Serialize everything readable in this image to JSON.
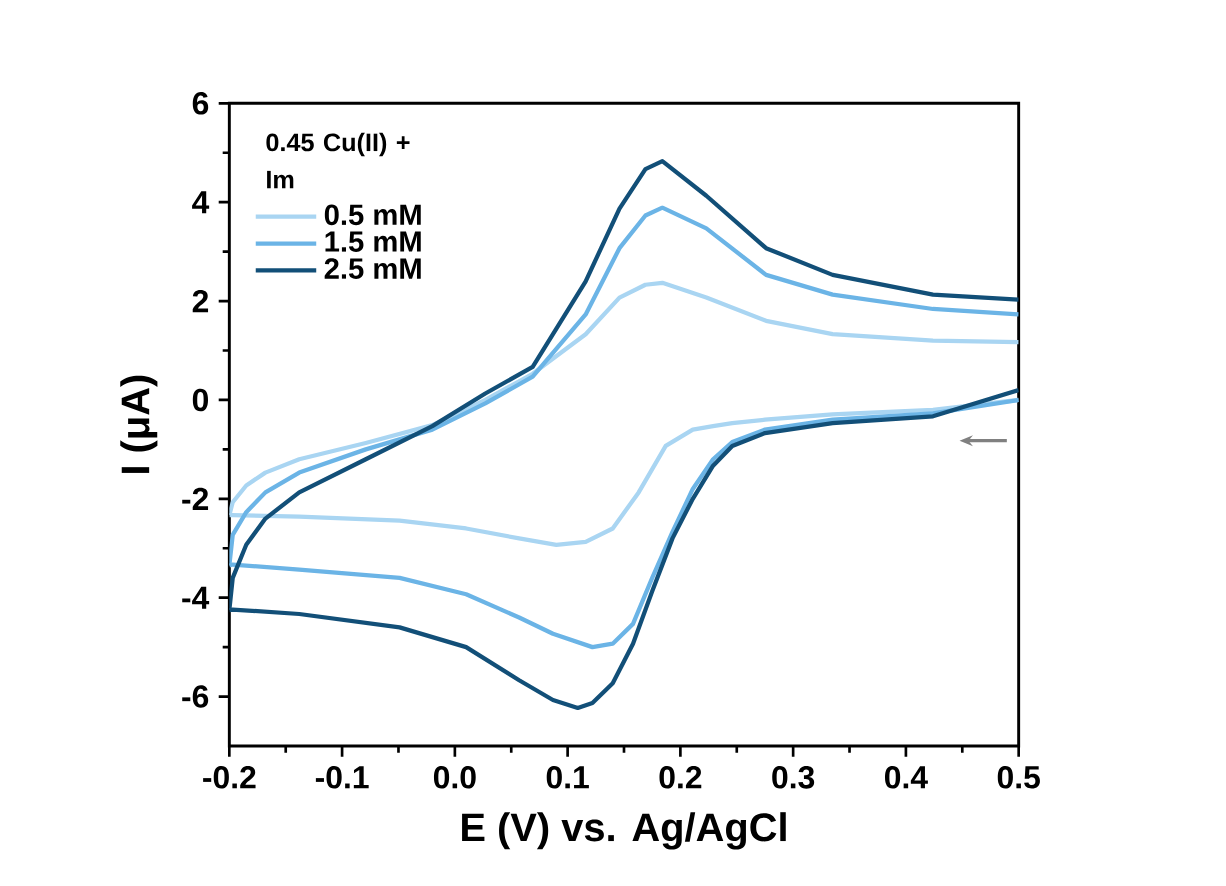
{
  "chart_data": {
    "type": "line",
    "xlabel": "E (V) vs. Ag/AgCl",
    "ylabel": "I (μA)",
    "legend_title": "0.45 Cu(II) + Im",
    "legend": "top left",
    "xlim": [
      -0.2,
      0.5
    ],
    "ylim": [
      -7,
      6
    ],
    "xticks": [
      -0.2,
      -0.1,
      {
        "value": 0,
        "label": "0.0"
      },
      0.1,
      0.2,
      0.3,
      0.4,
      0.5
    ],
    "yticks": [
      -6,
      -4,
      -2,
      0,
      2,
      4,
      6
    ],
    "series": [
      {
        "name": "0.5 mM",
        "color": "#a9d5f2",
        "x": [
          0.5,
          0.424,
          0.335,
          0.275,
          0.246,
          0.229,
          0.211,
          0.187,
          0.163,
          0.14,
          0.116,
          0.09,
          0.057,
          0.01,
          -0.049,
          -0.138,
          -0.197,
          -0.2
        ],
        "values": [
          0.0,
          -0.2,
          -0.29,
          -0.4,
          -0.47,
          -0.53,
          -0.6,
          -0.93,
          -1.87,
          -2.6,
          -2.87,
          -2.93,
          -2.8,
          -2.6,
          -2.44,
          -2.36,
          -2.33,
          -2.33
        ]
      },
      {
        "color": "#a9d5f2",
        "x": [
          -0.2,
          -0.197,
          -0.185,
          -0.168,
          -0.138,
          -0.079,
          -0.02,
          0.027,
          0.069,
          0.116,
          0.146,
          0.169,
          0.184,
          0.223,
          0.276,
          0.335,
          0.424,
          0.5
        ],
        "values": [
          -2.33,
          -2.07,
          -1.73,
          -1.47,
          -1.2,
          -0.87,
          -0.51,
          0.0,
          0.53,
          1.33,
          2.07,
          2.33,
          2.37,
          2.07,
          1.6,
          1.33,
          1.2,
          1.17
        ]
      },
      {
        "name": "1.5 mM",
        "color": "#6bb4e6",
        "x": [
          0.5,
          0.424,
          0.335,
          0.275,
          0.246,
          0.229,
          0.211,
          0.193,
          0.175,
          0.158,
          0.14,
          0.122,
          0.087,
          0.057,
          0.01,
          -0.049,
          -0.138,
          -0.197,
          -0.2
        ],
        "values": [
          0.0,
          -0.27,
          -0.4,
          -0.6,
          -0.85,
          -1.2,
          -1.8,
          -2.67,
          -3.6,
          -4.53,
          -4.93,
          -5.0,
          -4.73,
          -4.4,
          -3.93,
          -3.6,
          -3.43,
          -3.33,
          -3.35
        ]
      },
      {
        "color": "#6bb4e6",
        "x": [
          -0.2,
          -0.197,
          -0.185,
          -0.168,
          -0.138,
          -0.079,
          -0.02,
          0.027,
          0.069,
          0.116,
          0.146,
          0.169,
          0.184,
          0.223,
          0.276,
          0.335,
          0.424,
          0.5
        ],
        "values": [
          -3.35,
          -2.73,
          -2.27,
          -1.87,
          -1.47,
          -1.0,
          -0.6,
          -0.07,
          0.47,
          1.73,
          3.07,
          3.73,
          3.89,
          3.47,
          2.53,
          2.13,
          1.84,
          1.73
        ]
      },
      {
        "name": "2.5 mM",
        "color": "#124f78",
        "x": [
          0.5,
          0.424,
          0.335,
          0.275,
          0.246,
          0.229,
          0.211,
          0.193,
          0.175,
          0.158,
          0.14,
          0.122,
          0.109,
          0.087,
          0.057,
          0.01,
          -0.049,
          -0.138,
          -0.197,
          -0.2
        ],
        "values": [
          0.2,
          -0.33,
          -0.47,
          -0.67,
          -0.93,
          -1.33,
          -2.0,
          -2.8,
          -3.87,
          -4.93,
          -5.73,
          -6.13,
          -6.23,
          -6.07,
          -5.67,
          -5.0,
          -4.6,
          -4.33,
          -4.24,
          -4.25
        ]
      },
      {
        "color": "#124f78",
        "x": [
          -0.2,
          -0.197,
          -0.185,
          -0.168,
          -0.138,
          -0.079,
          -0.02,
          0.027,
          0.069,
          0.116,
          0.146,
          0.169,
          0.184,
          0.223,
          0.276,
          0.335,
          0.424,
          0.5
        ],
        "values": [
          -4.25,
          -3.6,
          -2.93,
          -2.4,
          -1.87,
          -1.2,
          -0.53,
          0.13,
          0.67,
          2.4,
          3.87,
          4.67,
          4.83,
          4.13,
          3.07,
          2.53,
          2.13,
          2.03
        ]
      }
    ]
  }
}
